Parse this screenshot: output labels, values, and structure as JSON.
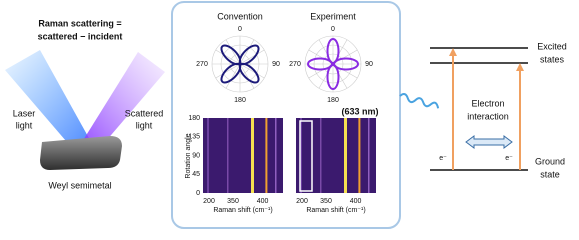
{
  "left": {
    "title_lines": [
      "Raman scattering =",
      "scattered − incident"
    ],
    "laser_label": [
      "Laser",
      "light"
    ],
    "scattered_label": [
      "Scattered",
      "light"
    ],
    "material": "Weyl semimetal"
  },
  "center": {
    "polar_plots": [
      {
        "title": "Convention",
        "angle_labels": [
          "0",
          "90",
          "180",
          "270"
        ]
      },
      {
        "title": "Experiment",
        "angle_labels": [
          "0",
          "90",
          "180",
          "270"
        ]
      }
    ],
    "wavelength": "(633 nm)",
    "y_axis_label": "Rotation angle",
    "y_ticks": [
      "0",
      "45",
      "90",
      "135",
      "180"
    ],
    "heatmaps": [
      {
        "x_ticks": [
          "200",
          "350",
          "400"
        ],
        "x_axis_label": "Raman shift (cm⁻¹)"
      },
      {
        "x_ticks": [
          "200",
          "350",
          "400"
        ],
        "x_axis_label": "Raman shift (cm⁻¹)"
      }
    ]
  },
  "right": {
    "excited": [
      "Excited",
      "states"
    ],
    "ground": [
      "Ground",
      "state"
    ],
    "interaction": [
      "Electron",
      "interaction"
    ],
    "electrons": [
      "e⁻",
      "e⁻"
    ]
  }
}
